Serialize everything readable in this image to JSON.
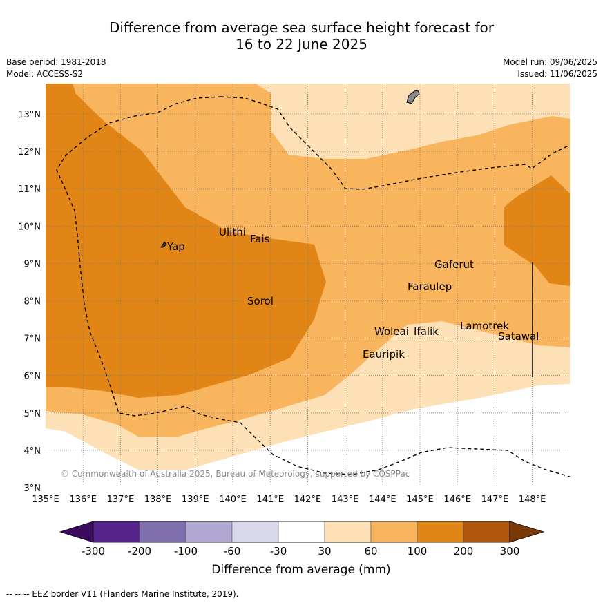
{
  "title_line1": "Difference from average sea surface height forecast for",
  "title_line2": "16 to 22 June 2025",
  "base_period": "Base period: 1981-2018",
  "model": "Model: ACCESS-S2",
  "model_run": "Model run: 09/06/2025",
  "issued": "Issued: 11/06/2025",
  "copyright": "© Commonwealth of Australia 2025, Bureau of Meteorology, supported by COSPPac",
  "footnote": "--  --  -- EEZ border V11 (Flanders Marine Institute, 2019).",
  "lat_labels": [
    "3°N",
    "4°N",
    "5°N",
    "6°N",
    "7°N",
    "8°N",
    "9°N",
    "10°N",
    "11°N",
    "12°N",
    "13°N"
  ],
  "lon_labels": [
    "135°E",
    "136°E",
    "137°E",
    "138°E",
    "139°E",
    "140°E",
    "141°E",
    "142°E",
    "143°E",
    "144°E",
    "145°E",
    "146°E",
    "147°E",
    "148°E"
  ],
  "places": [
    "Yap",
    "Ulithi",
    "Fais",
    "Sorol",
    "Gaferut",
    "Faraulep",
    "Woleai",
    "Ifalik",
    "Lamotrek",
    "Satawal",
    "Eauripik"
  ],
  "colorbar": {
    "label": "Difference from average (mm)",
    "ticks": [
      "-300",
      "-200",
      "-100",
      "-60",
      "-30",
      "30",
      "60",
      "100",
      "200",
      "300"
    ],
    "colors": [
      "#3a0a5e",
      "#55218a",
      "#7f6fae",
      "#b0a8d2",
      "#d8d8ea",
      "#ffffff",
      "#fde0b5",
      "#f8b55e",
      "#e08516",
      "#b0570b",
      "#7a3a08"
    ]
  }
}
